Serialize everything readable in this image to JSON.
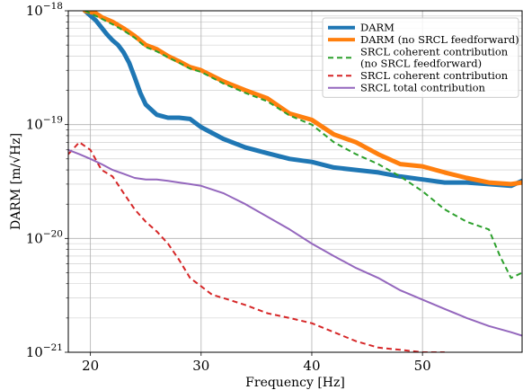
{
  "chart_data": {
    "type": "line",
    "xlabel": "Frequency [Hz]",
    "ylabel": "DARM [m/√Hz]",
    "xlim": [
      18,
      59
    ],
    "ylim": [
      1e-21,
      1e-18
    ],
    "yscale": "log",
    "xticks": [
      20,
      30,
      40,
      50
    ],
    "yticks": [
      {
        "value": 1e-18,
        "mantissa": "10",
        "exp": "−18"
      },
      {
        "value": 1e-19,
        "mantissa": "10",
        "exp": "−19"
      },
      {
        "value": 1e-20,
        "mantissa": "10",
        "exp": "−20"
      },
      {
        "value": 1e-21,
        "mantissa": "10",
        "exp": "−21"
      }
    ],
    "grid": true,
    "legend_position": "top-right",
    "series": [
      {
        "name": "DARM",
        "color": "#1f77b4",
        "style": "solid",
        "width": 5,
        "x": [
          19.5,
          20.5,
          21.5,
          22.0,
          22.5,
          23.0,
          23.5,
          24.0,
          24.5,
          25.0,
          26.0,
          27.0,
          28.0,
          29.0,
          30.0,
          32.0,
          34.0,
          36.0,
          38.0,
          40.0,
          42.0,
          44.0,
          46.0,
          48.0,
          50.0,
          52.0,
          54.0,
          56.0,
          58.0,
          59.0
        ],
        "y": [
          1e-18,
          8.2e-19,
          6.2e-19,
          5.5e-19,
          5e-19,
          4.3e-19,
          3.5e-19,
          2.6e-19,
          1.9e-19,
          1.5e-19,
          1.22e-19,
          1.15e-19,
          1.15e-19,
          1.12e-19,
          9.5e-20,
          7.5e-20,
          6.3e-20,
          5.6e-20,
          5e-20,
          4.7e-20,
          4.2e-20,
          4e-20,
          3.8e-20,
          3.5e-20,
          3.3e-20,
          3.1e-20,
          3.1e-20,
          3e-20,
          2.9e-20,
          3.2e-20
        ]
      },
      {
        "name": "DARM (no SRCL feedforward)",
        "color": "#ff7f0e",
        "style": "solid",
        "width": 5,
        "x": [
          19.5,
          20.5,
          21.0,
          22.0,
          23.0,
          24.0,
          25.0,
          26.0,
          27.0,
          28.0,
          29.0,
          30.0,
          32.0,
          34.0,
          36.0,
          38.0,
          40.0,
          42.0,
          44.0,
          46.0,
          48.0,
          50.0,
          52.0,
          54.0,
          56.0,
          58.0,
          59.0
        ],
        "y": [
          1e-18,
          9.5e-19,
          8.8e-19,
          8e-19,
          7e-19,
          6e-19,
          5e-19,
          4.6e-19,
          4e-19,
          3.6e-19,
          3.2e-19,
          3e-19,
          2.4e-19,
          2e-19,
          1.7e-19,
          1.25e-19,
          1.1e-19,
          8.2e-20,
          7e-20,
          5.5e-20,
          4.5e-20,
          4.3e-20,
          3.8e-20,
          3.4e-20,
          3.1e-20,
          3e-20,
          3.1e-20
        ]
      },
      {
        "name": "SRCL coherent contribution (no SRCL feedforward)",
        "color": "#2ca02c",
        "style": "dashed",
        "width": 2,
        "x": [
          19.5,
          20.5,
          21.0,
          22.0,
          23.0,
          24.0,
          25.0,
          26.0,
          27.0,
          28.0,
          29.0,
          30.0,
          32.0,
          34.0,
          36.0,
          38.0,
          40.0,
          42.0,
          44.0,
          46.0,
          48.0,
          50.0,
          52.0,
          54.0,
          56.0,
          57.0,
          58.0,
          59.0
        ],
        "y": [
          1e-18,
          9e-19,
          8.5e-19,
          7.6e-19,
          6.7e-19,
          5.8e-19,
          4.8e-19,
          4.4e-19,
          3.9e-19,
          3.5e-19,
          3.1e-19,
          2.9e-19,
          2.3e-19,
          1.9e-19,
          1.6e-19,
          1.2e-19,
          1e-19,
          7e-20,
          5.5e-20,
          4.5e-20,
          3.5e-20,
          2.6e-20,
          1.8e-20,
          1.4e-20,
          1.2e-20,
          7e-21,
          4.5e-21,
          5e-21
        ]
      },
      {
        "name": "SRCL coherent contribution",
        "color": "#d62728",
        "style": "dashed",
        "width": 2,
        "x": [
          18.0,
          19.0,
          20.0,
          21.0,
          22.0,
          23.0,
          24.0,
          25.0,
          26.0,
          27.0,
          28.0,
          29.0,
          30.0,
          31.0,
          32.0,
          34.0,
          36.0,
          38.0,
          40.0,
          42.0,
          44.0,
          46.0,
          48.0,
          50.0,
          52.0
        ],
        "y": [
          5.5e-20,
          7e-20,
          6e-20,
          4e-20,
          3.5e-20,
          2.5e-20,
          1.8e-20,
          1.4e-20,
          1.15e-20,
          9e-21,
          6.5e-21,
          4.5e-21,
          3.8e-21,
          3.2e-21,
          3e-21,
          2.6e-21,
          2.2e-21,
          2e-21,
          1.8e-21,
          1.5e-21,
          1.25e-21,
          1.1e-21,
          1.05e-21,
          1e-21,
          1e-21
        ]
      },
      {
        "name": "SRCL total contribution",
        "color": "#9467bd",
        "style": "solid",
        "width": 2,
        "x": [
          18.0,
          19.0,
          20.0,
          21.0,
          22.0,
          23.0,
          24.0,
          25.0,
          26.0,
          27.0,
          28.0,
          29.0,
          30.0,
          32.0,
          34.0,
          36.0,
          38.0,
          40.0,
          42.0,
          44.0,
          46.0,
          48.0,
          50.0,
          52.0,
          54.0,
          56.0,
          58.0,
          59.0
        ],
        "y": [
          6e-20,
          5.5e-20,
          5e-20,
          4.5e-20,
          4e-20,
          3.7e-20,
          3.4e-20,
          3.3e-20,
          3.3e-20,
          3.2e-20,
          3.1e-20,
          3e-20,
          2.9e-20,
          2.5e-20,
          2e-20,
          1.55e-20,
          1.2e-20,
          9e-21,
          7e-21,
          5.5e-21,
          4.5e-21,
          3.5e-21,
          2.9e-21,
          2.4e-21,
          2e-21,
          1.7e-21,
          1.5e-21,
          1.4e-21
        ]
      }
    ],
    "legend": [
      {
        "label": "DARM",
        "series": 0
      },
      {
        "label": "DARM (no SRCL feedforward)",
        "series": 1
      },
      {
        "label": "SRCL coherent contribution",
        "label2": "(no SRCL feedforward)",
        "series": 2
      },
      {
        "label": "SRCL coherent contribution",
        "series": 3
      },
      {
        "label": "SRCL total contribution",
        "series": 4
      }
    ]
  }
}
